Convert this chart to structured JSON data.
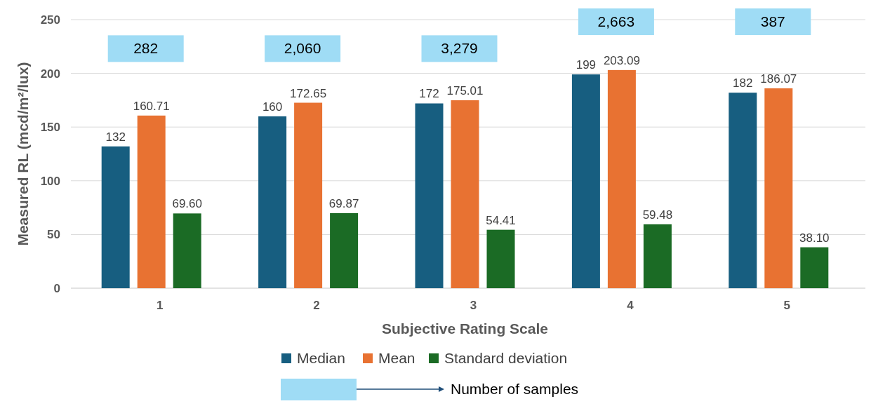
{
  "chart_data": {
    "type": "bar",
    "ylabel": "Measured RL (mcd/m²/lux)",
    "xlabel": "Subjective Rating Scale",
    "categories": [
      "1",
      "2",
      "3",
      "4",
      "5"
    ],
    "series": [
      {
        "name": "Median",
        "color": "#175e80",
        "values": [
          132,
          160,
          172,
          199,
          182
        ],
        "value_labels": [
          "132",
          "160",
          "172",
          "199",
          "182"
        ]
      },
      {
        "name": "Mean",
        "color": "#e87232",
        "values": [
          160.71,
          172.65,
          175.01,
          203.09,
          186.07
        ],
        "value_labels": [
          "160.71",
          "172.65",
          "175.01",
          "203.09",
          "186.07"
        ]
      },
      {
        "name": "Standard deviation",
        "color": "#1b6b25",
        "values": [
          69.6,
          69.87,
          54.41,
          59.48,
          38.1
        ],
        "value_labels": [
          "69.60",
          "69.87",
          "54.41",
          "59.48",
          "38.10"
        ]
      }
    ],
    "ylim": [
      0,
      250
    ],
    "yticks": [
      0,
      50,
      100,
      150,
      200,
      250
    ],
    "grid": "y",
    "legend": "bottom",
    "annotations": [
      "282",
      "2,060",
      "3,279",
      "2,663",
      "387",
      "Number of samples"
    ]
  }
}
